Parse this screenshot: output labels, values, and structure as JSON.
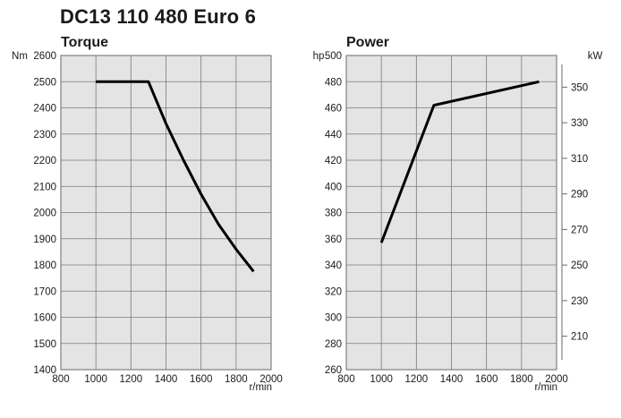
{
  "title": "DC13 110 480 Euro 6",
  "chart_data": [
    {
      "type": "line",
      "title": "Torque",
      "ylabel": "Nm",
      "xlabel": "r/min",
      "xlim": [
        800,
        2000
      ],
      "ylim": [
        1400,
        2600
      ],
      "xticks": [
        800,
        1000,
        1200,
        1400,
        1600,
        1800,
        2000
      ],
      "yticks": [
        1400,
        1500,
        1600,
        1700,
        1800,
        1900,
        2000,
        2100,
        2200,
        2300,
        2400,
        2500,
        2600
      ],
      "grid": true,
      "series": [
        {
          "x": [
            1000,
            1300,
            1400,
            1500,
            1600,
            1700,
            1800,
            1900
          ],
          "y": [
            2500,
            2500,
            2340,
            2200,
            2070,
            1955,
            1860,
            1775
          ]
        }
      ]
    },
    {
      "type": "line",
      "title": "Power",
      "ylabel": "hp",
      "y2label": "kW",
      "xlabel": "r/min",
      "xlim": [
        800,
        2000
      ],
      "ylim": [
        260,
        500
      ],
      "y2lim": [
        191.2,
        367.8
      ],
      "xticks": [
        800,
        1000,
        1200,
        1400,
        1600,
        1800,
        2000
      ],
      "yticks": [
        260,
        280,
        300,
        320,
        340,
        360,
        380,
        400,
        420,
        440,
        460,
        480,
        500
      ],
      "y2ticks": [
        210,
        230,
        250,
        270,
        290,
        310,
        330,
        350
      ],
      "grid": true,
      "series": [
        {
          "x": [
            1000,
            1300,
            1900
          ],
          "y": [
            357,
            462,
            480
          ]
        }
      ]
    }
  ]
}
